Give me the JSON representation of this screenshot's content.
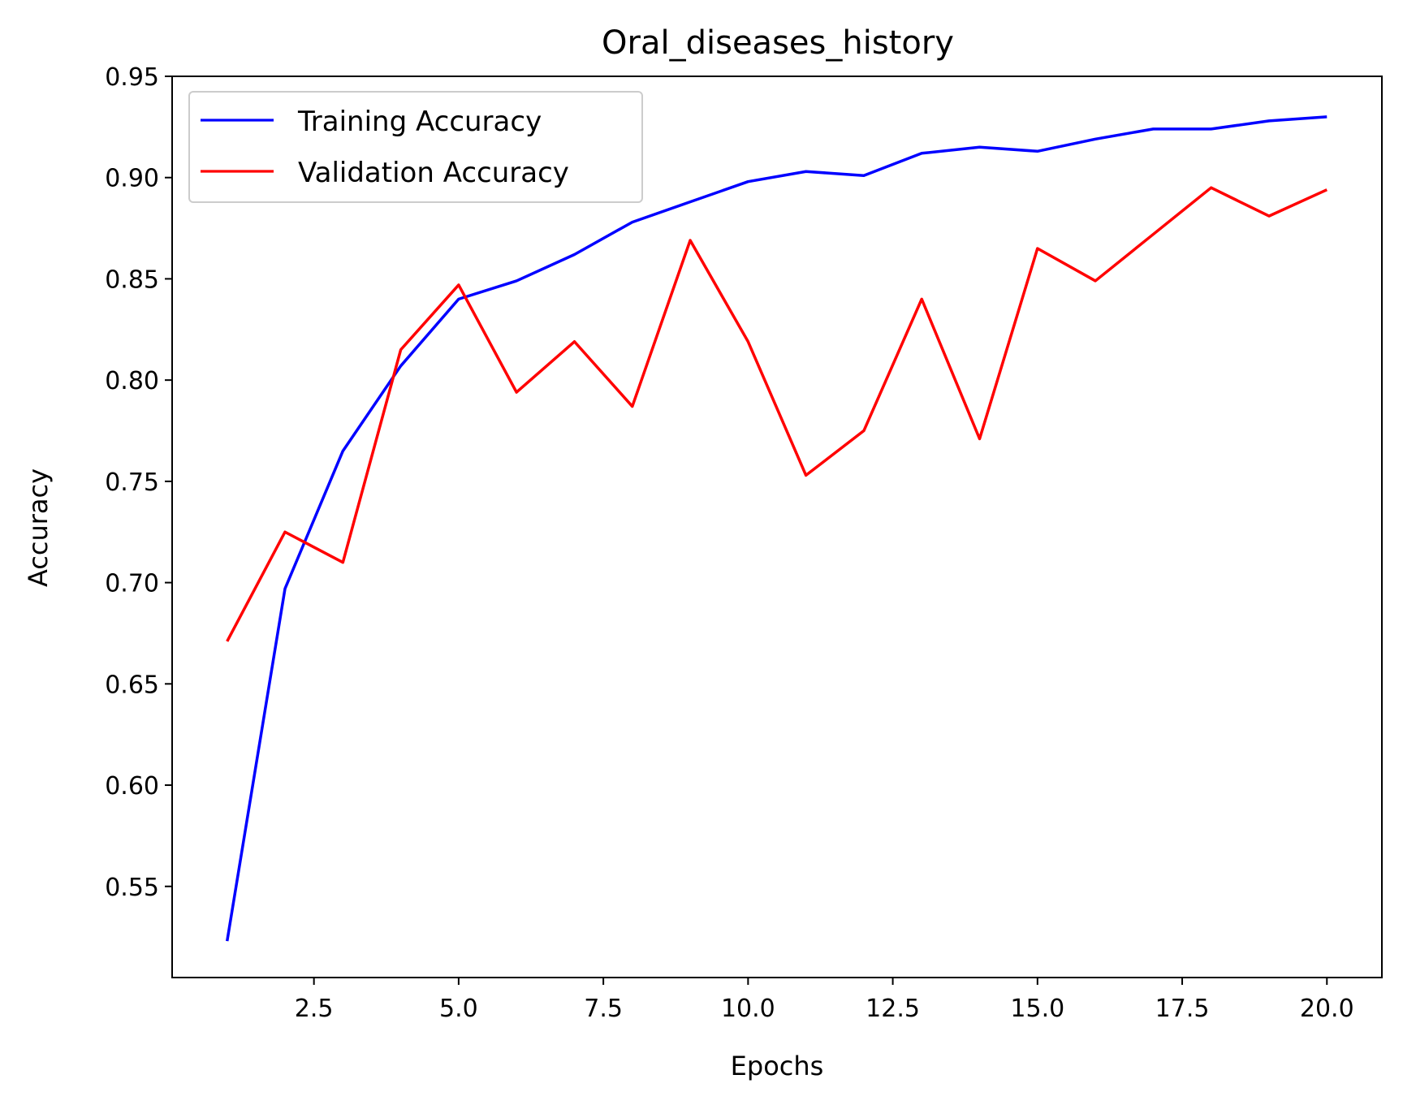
{
  "chart_data": {
    "type": "line",
    "title": "Oral_diseases_history",
    "xlabel": "Epochs",
    "ylabel": "Accuracy",
    "xlim": [
      0.05,
      20.95
    ],
    "ylim": [
      0.505,
      0.95
    ],
    "xticks": [
      2.5,
      5.0,
      7.5,
      10.0,
      12.5,
      15.0,
      17.5,
      20.0
    ],
    "xtick_labels": [
      "2.5",
      "5.0",
      "7.5",
      "10.0",
      "12.5",
      "15.0",
      "17.5",
      "20.0"
    ],
    "yticks": [
      0.55,
      0.6,
      0.65,
      0.7,
      0.75,
      0.8,
      0.85,
      0.9,
      0.95
    ],
    "ytick_labels": [
      "0.55",
      "0.60",
      "0.65",
      "0.70",
      "0.75",
      "0.80",
      "0.85",
      "0.90",
      "0.95"
    ],
    "grid": false,
    "legend_position": "top-left",
    "x": [
      1,
      2,
      3,
      4,
      5,
      6,
      7,
      8,
      9,
      10,
      11,
      12,
      13,
      14,
      15,
      16,
      17,
      18,
      19,
      20
    ],
    "series": [
      {
        "name": "Training Accuracy",
        "color": "#0000ff",
        "values": [
          0.523,
          0.697,
          0.765,
          0.807,
          0.84,
          0.849,
          0.862,
          0.878,
          0.888,
          0.898,
          0.903,
          0.901,
          0.912,
          0.915,
          0.913,
          0.919,
          0.924,
          0.924,
          0.928,
          0.93
        ]
      },
      {
        "name": "Validation Accuracy",
        "color": "#ff0000",
        "values": [
          0.671,
          0.725,
          0.71,
          0.815,
          0.847,
          0.794,
          0.819,
          0.787,
          0.869,
          0.819,
          0.753,
          0.775,
          0.84,
          0.771,
          0.865,
          0.849,
          0.872,
          0.895,
          0.881,
          0.894
        ]
      }
    ]
  }
}
